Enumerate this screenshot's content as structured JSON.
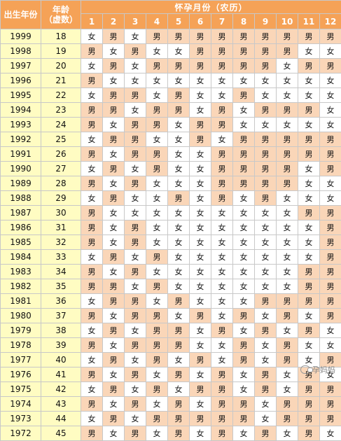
{
  "header": {
    "birth_year_label": "出生年份",
    "age_label_line1": "年龄",
    "age_label_line2": "（虚数）",
    "conception_month_label": "怀孕月份（农历）",
    "months": [
      "1",
      "2",
      "3",
      "4",
      "5",
      "6",
      "7",
      "8",
      "9",
      "10",
      "11",
      "12"
    ]
  },
  "rows": [
    {
      "year": "1999",
      "age": "18",
      "cells": [
        "女",
        "男",
        "女",
        "男",
        "男",
        "男",
        "男",
        "男",
        "男",
        "男",
        "男",
        "男"
      ]
    },
    {
      "year": "1998",
      "age": "19",
      "cells": [
        "男",
        "女",
        "男",
        "女",
        "女",
        "男",
        "男",
        "男",
        "男",
        "男",
        "女",
        "女"
      ]
    },
    {
      "year": "1997",
      "age": "20",
      "cells": [
        "女",
        "男",
        "女",
        "男",
        "男",
        "男",
        "男",
        "男",
        "男",
        "女",
        "男",
        "男"
      ]
    },
    {
      "year": "1996",
      "age": "21",
      "cells": [
        "男",
        "女",
        "女",
        "女",
        "女",
        "女",
        "女",
        "女",
        "女",
        "女",
        "女",
        "女"
      ]
    },
    {
      "year": "1995",
      "age": "22",
      "cells": [
        "女",
        "男",
        "男",
        "女",
        "男",
        "女",
        "女",
        "男",
        "女",
        "女",
        "女",
        "女"
      ]
    },
    {
      "year": "1994",
      "age": "23",
      "cells": [
        "男",
        "男",
        "女",
        "男",
        "男",
        "女",
        "男",
        "女",
        "男",
        "男",
        "男",
        "女"
      ]
    },
    {
      "year": "1993",
      "age": "24",
      "cells": [
        "男",
        "女",
        "男",
        "男",
        "女",
        "男",
        "男",
        "女",
        "女",
        "女",
        "女",
        "女"
      ]
    },
    {
      "year": "1992",
      "age": "25",
      "cells": [
        "女",
        "男",
        "男",
        "女",
        "女",
        "男",
        "女",
        "男",
        "男",
        "男",
        "男",
        "男"
      ]
    },
    {
      "year": "1991",
      "age": "26",
      "cells": [
        "男",
        "女",
        "男",
        "男",
        "女",
        "女",
        "男",
        "男",
        "男",
        "男",
        "男",
        "男"
      ]
    },
    {
      "year": "1990",
      "age": "27",
      "cells": [
        "女",
        "男",
        "女",
        "男",
        "女",
        "女",
        "男",
        "男",
        "男",
        "男",
        "女",
        "男"
      ]
    },
    {
      "year": "1989",
      "age": "28",
      "cells": [
        "男",
        "女",
        "男",
        "女",
        "女",
        "女",
        "男",
        "男",
        "男",
        "男",
        "女",
        "女"
      ]
    },
    {
      "year": "1988",
      "age": "29",
      "cells": [
        "女",
        "男",
        "女",
        "女",
        "男",
        "女",
        "男",
        "女",
        "男",
        "女",
        "女",
        "女"
      ]
    },
    {
      "year": "1987",
      "age": "30",
      "cells": [
        "男",
        "女",
        "女",
        "女",
        "女",
        "女",
        "女",
        "女",
        "女",
        "女",
        "男",
        "男"
      ]
    },
    {
      "year": "1986",
      "age": "31",
      "cells": [
        "男",
        "女",
        "男",
        "女",
        "女",
        "女",
        "女",
        "女",
        "女",
        "女",
        "女",
        "男"
      ]
    },
    {
      "year": "1985",
      "age": "32",
      "cells": [
        "男",
        "女",
        "男",
        "女",
        "女",
        "女",
        "女",
        "女",
        "女",
        "女",
        "女",
        "男"
      ]
    },
    {
      "year": "1984",
      "age": "33",
      "cells": [
        "女",
        "男",
        "女",
        "男",
        "女",
        "女",
        "女",
        "女",
        "女",
        "女",
        "女",
        "男"
      ]
    },
    {
      "year": "1983",
      "age": "34",
      "cells": [
        "男",
        "女",
        "男",
        "女",
        "女",
        "女",
        "女",
        "女",
        "女",
        "女",
        "男",
        "男"
      ]
    },
    {
      "year": "1982",
      "age": "35",
      "cells": [
        "男",
        "男",
        "女",
        "男",
        "女",
        "女",
        "女",
        "女",
        "女",
        "女",
        "男",
        "男"
      ]
    },
    {
      "year": "1981",
      "age": "36",
      "cells": [
        "女",
        "男",
        "男",
        "女",
        "男",
        "女",
        "女",
        "女",
        "男",
        "男",
        "男",
        "男"
      ]
    },
    {
      "year": "1980",
      "age": "37",
      "cells": [
        "男",
        "女",
        "男",
        "男",
        "女",
        "男",
        "女",
        "男",
        "女",
        "男",
        "女",
        "男"
      ]
    },
    {
      "year": "1979",
      "age": "38",
      "cells": [
        "女",
        "男",
        "女",
        "男",
        "男",
        "女",
        "男",
        "女",
        "男",
        "女",
        "男",
        "女"
      ]
    },
    {
      "year": "1978",
      "age": "39",
      "cells": [
        "男",
        "女",
        "男",
        "男",
        "男",
        "女",
        "女",
        "男",
        "女",
        "男",
        "女",
        "女"
      ]
    },
    {
      "year": "1977",
      "age": "40",
      "cells": [
        "女",
        "男",
        "女",
        "男",
        "女",
        "男",
        "女",
        "男",
        "女",
        "男",
        "女",
        "男"
      ]
    },
    {
      "year": "1976",
      "age": "41",
      "cells": [
        "男",
        "女",
        "男",
        "女",
        "男",
        "女",
        "男",
        "女",
        "男",
        "女",
        "男",
        "女"
      ]
    },
    {
      "year": "1975",
      "age": "42",
      "cells": [
        "女",
        "男",
        "女",
        "男",
        "女",
        "男",
        "男",
        "女",
        "男",
        "女",
        "男",
        "男"
      ]
    },
    {
      "year": "1974",
      "age": "43",
      "cells": [
        "男",
        "女",
        "男",
        "女",
        "男",
        "女",
        "男",
        "男",
        "女",
        "男",
        "男",
        "男"
      ]
    },
    {
      "year": "1973",
      "age": "44",
      "cells": [
        "女",
        "男",
        "女",
        "男",
        "男",
        "男",
        "男",
        "男",
        "女",
        "男",
        "男",
        "男"
      ]
    },
    {
      "year": "1972",
      "age": "45",
      "cells": [
        "男",
        "女",
        "男",
        "女",
        "男",
        "女",
        "男",
        "女",
        "男",
        "女",
        "男",
        "女"
      ]
    }
  ],
  "legend_colors": {
    "male_cell": "#fad6b8",
    "female_cell": "#ffffff",
    "header": "#f5a257",
    "left_cols": "#fffcc2"
  },
  "watermark": "孕妈妈"
}
